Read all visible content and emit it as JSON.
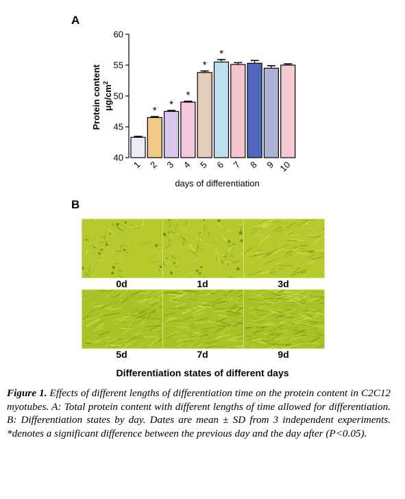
{
  "panel_a_label": "A",
  "panel_b_label": "B",
  "chart_data": {
    "type": "bar",
    "categories": [
      "1",
      "2",
      "3",
      "4",
      "5",
      "6",
      "7",
      "8",
      "9",
      "10"
    ],
    "values": [
      43.3,
      46.5,
      47.5,
      49.0,
      53.8,
      55.5,
      55.1,
      55.3,
      54.5,
      55.0
    ],
    "errors": [
      0.15,
      0.15,
      0.15,
      0.15,
      0.25,
      0.4,
      0.3,
      0.45,
      0.4,
      0.2
    ],
    "significant": [
      false,
      true,
      true,
      true,
      true,
      true,
      false,
      false,
      false,
      false
    ],
    "significance_marker": "*",
    "colors": [
      "#ebebf3",
      "#f3c98a",
      "#d8c6ec",
      "#f5c6dc",
      "#e6cdb8",
      "#bedff0",
      "#f6c4cc",
      "#5068c0",
      "#aeb2d6",
      "#f6c8d2"
    ],
    "ylabel_line1": "Protein content",
    "ylabel_line2_base": "μg/cm",
    "ylabel_line2_sup": "2",
    "xlabel": "days of differentiation",
    "ylim": [
      40,
      60
    ],
    "yticks": [
      40,
      45,
      50,
      55,
      60
    ],
    "grid": false
  },
  "micrographs": [
    {
      "label": "0d"
    },
    {
      "label": "1d"
    },
    {
      "label": "3d"
    },
    {
      "label": "5d"
    },
    {
      "label": "7d"
    },
    {
      "label": "9d"
    }
  ],
  "section_title": "Differentiation states of different days",
  "caption": {
    "figure_label": "Figure 1.",
    "text": " Effects of different lengths of differentiation time on the protein content in C2C12 myotubes. A: Total protein content with different lengths of time allowed for differentiation. B: Differentiation states by day. Dates are mean ± SD from 3 independent experiments. *denotes a significant difference between the previous day and the day after (P<0.05)."
  }
}
